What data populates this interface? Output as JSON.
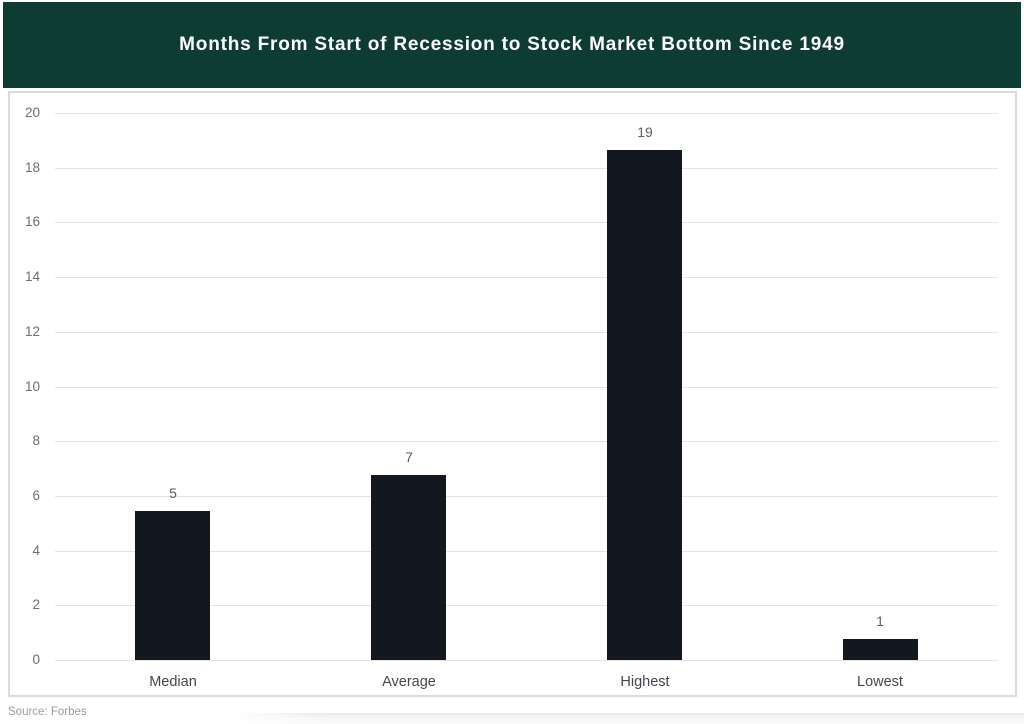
{
  "header": {
    "title": "Months From Start of Recession to Stock Market Bottom Since 1949",
    "bg_color": "#0d3c33",
    "text_color": "#ffffff"
  },
  "source": {
    "label": "Source: Forbes"
  },
  "chart_data": {
    "type": "bar",
    "title": "Months From Start of Recession to Stock Market Bottom Since 1949",
    "categories": [
      "Median",
      "Average",
      "Highest",
      "Lowest"
    ],
    "values": [
      5,
      7,
      19,
      1
    ],
    "value_labels": [
      "5",
      "7",
      "19",
      "1"
    ],
    "bar_heights": [
      5.45,
      6.75,
      18.65,
      0.75
    ],
    "xlabel": "",
    "ylabel": "",
    "ylim": [
      0,
      20
    ],
    "yticks": [
      0,
      2,
      4,
      6,
      8,
      10,
      12,
      14,
      16,
      18,
      20
    ],
    "grid": true,
    "legend": false,
    "bar_color": "#131720",
    "gridline_color": "#e4e4e4",
    "tick_label_color": "#6e6e6e",
    "value_label_color": "#585f66",
    "category_label_color": "#42474e"
  }
}
